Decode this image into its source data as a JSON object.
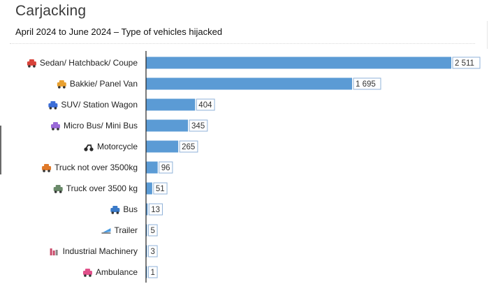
{
  "chart_data": {
    "type": "bar",
    "orientation": "horizontal",
    "title": "Carjacking",
    "subtitle": "April 2024 to June 2024 – Type of vehicles hijacked",
    "categories": [
      "Sedan/ Hatchback/ Coupe",
      "Bakkie/ Panel Van",
      "SUV/ Station Wagon",
      "Micro Bus/ Mini Bus",
      "Motorcycle",
      "Truck not over 3500kg",
      "Truck over 3500 kg",
      "Bus",
      "Trailer",
      "Industrial Machinery",
      "Ambulance"
    ],
    "values": [
      2511,
      1695,
      404,
      345,
      265,
      96,
      51,
      13,
      5,
      3,
      1
    ],
    "value_labels": [
      "2 511",
      "1 695",
      "404",
      "345",
      "265",
      "96",
      "51",
      "13",
      "5",
      "3",
      "1"
    ],
    "icons": [
      "car-icon",
      "van-icon",
      "suv-icon",
      "minibus-icon",
      "motorcycle-icon",
      "truck-icon",
      "heavy-truck-icon",
      "bus-icon",
      "trailer-icon",
      "machinery-icon",
      "ambulance-icon"
    ],
    "icon_colors": [
      "#d8433a",
      "#e8a030",
      "#3c6ed8",
      "#9a6ad8",
      "#2a2a2a",
      "#e07a2a",
      "#6a8a6a",
      "#3a7ac8",
      "#4a9ae0",
      "#c84a6a",
      "#e0508a"
    ],
    "bar_color": "#5b9bd5",
    "xlim": [
      0,
      2600
    ],
    "grid": false,
    "legend": "none"
  }
}
